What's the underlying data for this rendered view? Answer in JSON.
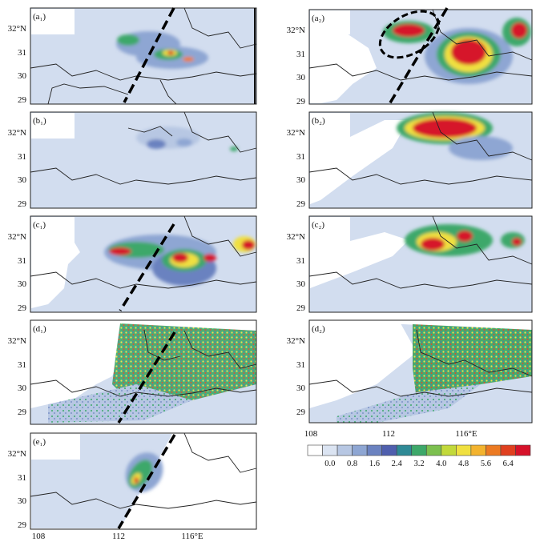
{
  "chart_data": {
    "type": "heatmap",
    "longitude_ticks": [
      "108",
      "112",
      "116°E"
    ],
    "latitude_ticks": [
      "32°N",
      "31",
      "30",
      "29"
    ],
    "colorbar": {
      "tick_labels": [
        "0.0",
        "0.8",
        "1.6",
        "2.4",
        "3.2",
        "4.0",
        "4.8",
        "5.6",
        "6.4"
      ],
      "colors": [
        "#ffffff",
        "#dbe4f2",
        "#b7c7e3",
        "#8ea6d3",
        "#6b82c0",
        "#4f5fae",
        "#2f8a96",
        "#3da86a",
        "#7cc04f",
        "#c2d93a",
        "#f0e040",
        "#f3b32e",
        "#ec7a22",
        "#e0401f",
        "#d6122a"
      ]
    },
    "panels": [
      {
        "label": "(a₁)",
        "has_line": true
      },
      {
        "label": "(a₂)",
        "has_line": true,
        "has_ellipse": true
      },
      {
        "label": "(b₁)",
        "has_line": false
      },
      {
        "label": "(b₂)",
        "has_line": false
      },
      {
        "label": "(c₁)",
        "has_line": true
      },
      {
        "label": "(c₂)",
        "has_line": false
      },
      {
        "label": "(d₁)",
        "has_line": true
      },
      {
        "label": "(d₂)",
        "has_line": false
      },
      {
        "label": "(e₁)",
        "has_line": true
      }
    ]
  }
}
